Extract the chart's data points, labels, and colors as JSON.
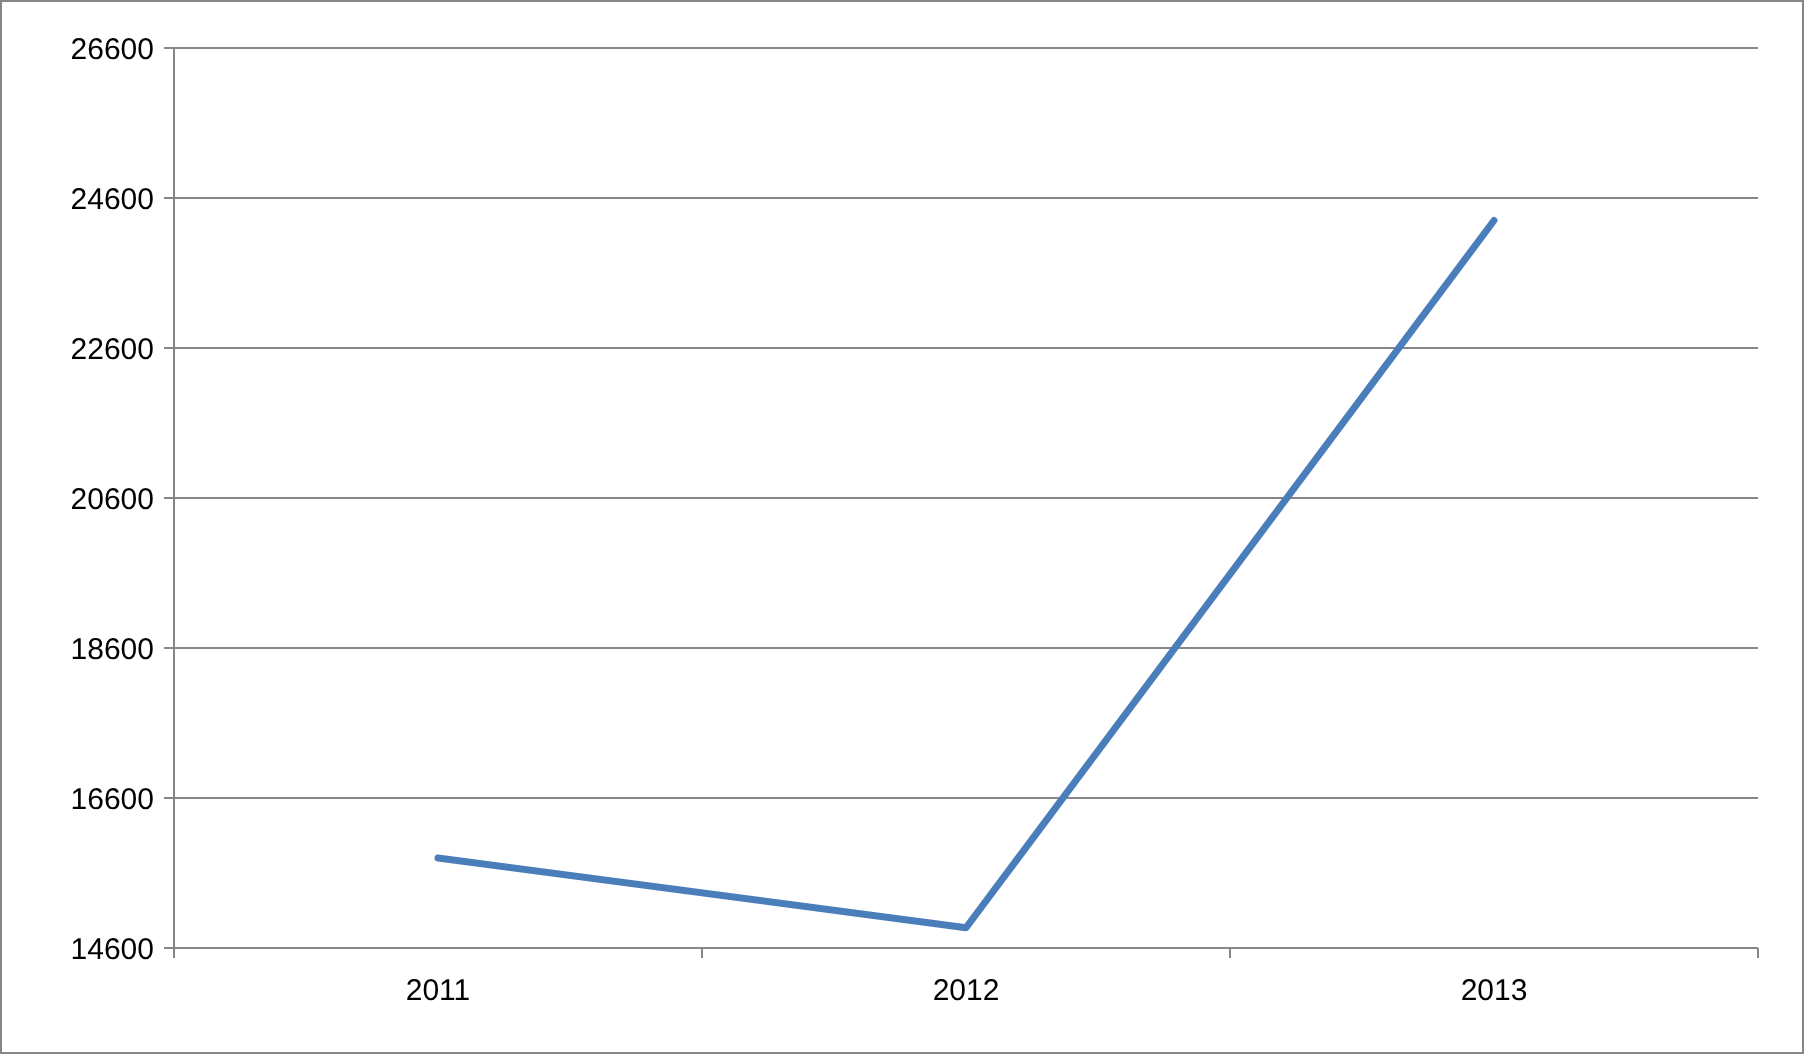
{
  "chart_data": {
    "type": "line",
    "categories": [
      "2011",
      "2012",
      "2013"
    ],
    "series": [
      {
        "color": "#4a7ebb",
        "values": [
          15800,
          14870,
          24300
        ]
      }
    ],
    "ylim": [
      14600,
      26600
    ],
    "yticks": [
      14600,
      16600,
      18600,
      20600,
      22600,
      24600,
      26600
    ],
    "grid": "y",
    "marker": "none",
    "line_style": "solid"
  }
}
